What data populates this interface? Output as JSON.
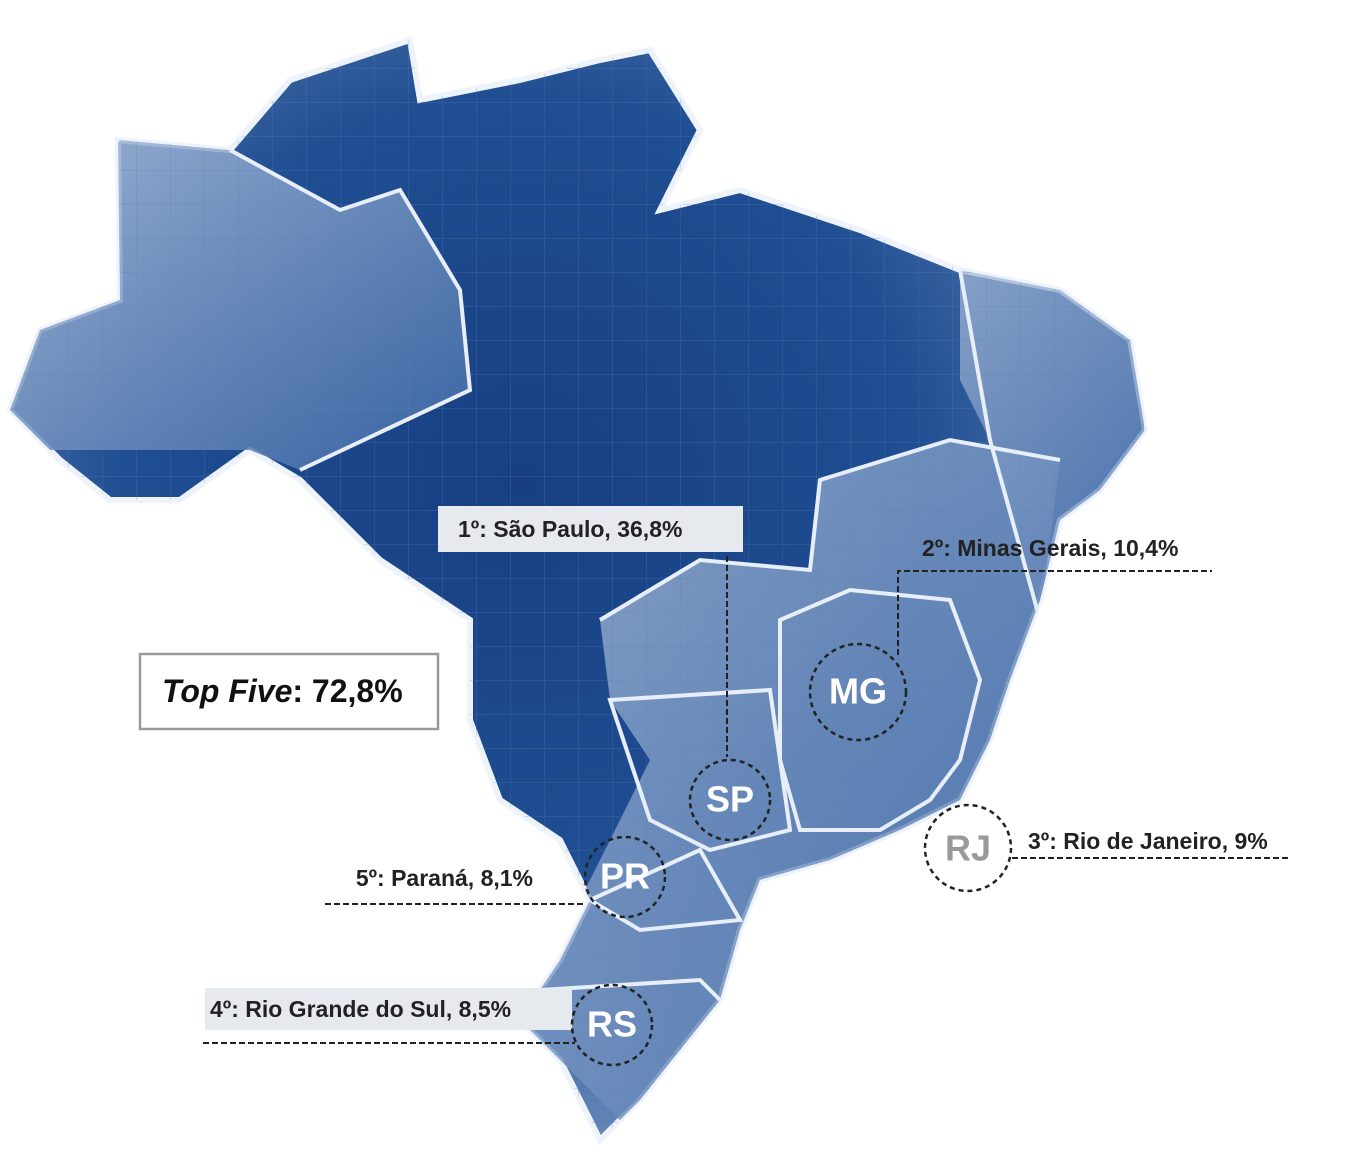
{
  "map": {
    "callouts": [
      {
        "code": "SP",
        "label": "1º: São Paulo, 36,8%"
      },
      {
        "code": "MG",
        "label": "2º: Minas Gerais, 10,4%"
      },
      {
        "code": "RJ",
        "label": "3º: Rio de Janeiro, 9%"
      },
      {
        "code": "RS",
        "label": "4º: Rio Grande do Sul, 8,5%"
      },
      {
        "code": "PR",
        "label": "5º: Paraná, 8,1%"
      }
    ],
    "top_five": {
      "label": "Top Five",
      "text": ": 72,8%"
    }
  }
}
